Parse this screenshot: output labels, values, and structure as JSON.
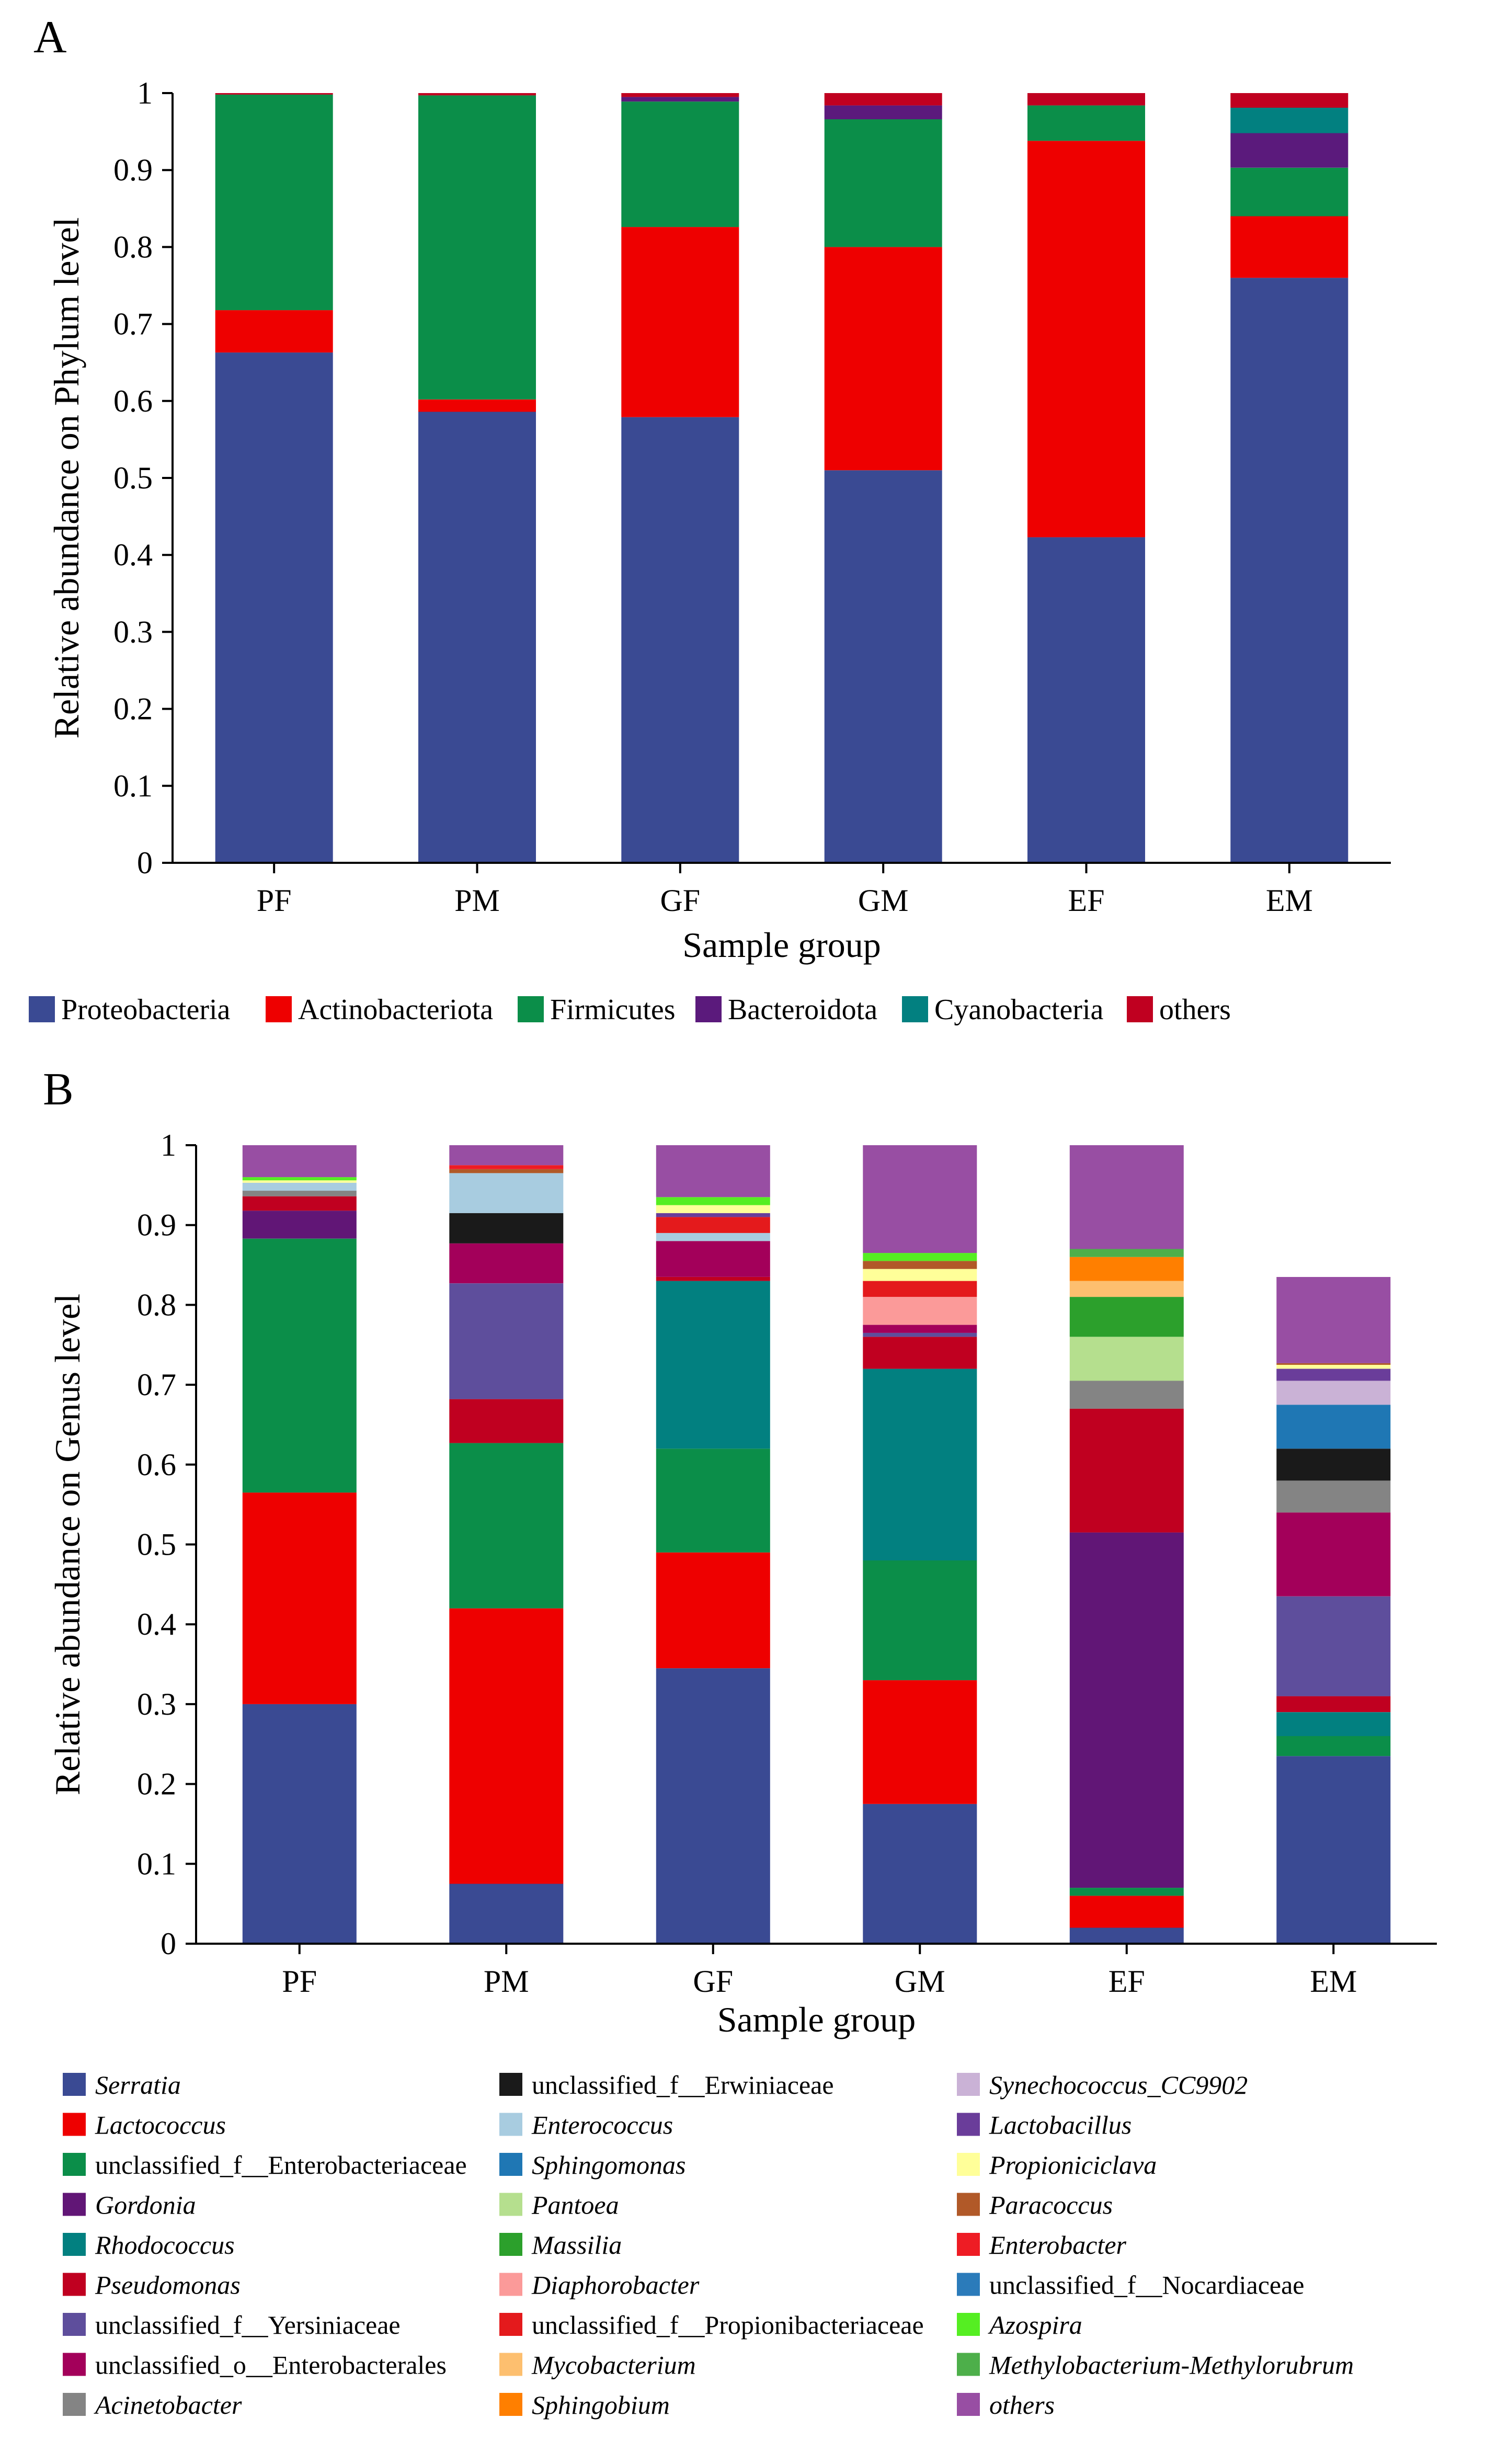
{
  "chart_data": [
    {
      "panel_label": "A",
      "type": "bar",
      "stacked": true,
      "xlabel": "Sample group",
      "ylabel": "Relative abundance on Phylum level",
      "ylim": [
        0,
        1
      ],
      "yticks": [
        "0",
        "0.1",
        "0.2",
        "0.3",
        "0.4",
        "0.5",
        "0.6",
        "0.7",
        "0.8",
        "0.9",
        "1"
      ],
      "categories": [
        "PF",
        "PM",
        "GF",
        "GM",
        "EF",
        "EM"
      ],
      "legend_position": "bottom",
      "series": [
        {
          "name": "Proteobacteria",
          "color": "#3a4a93",
          "italic": false,
          "values": [
            0.663,
            0.586,
            0.579,
            0.51,
            0.423,
            0.76
          ]
        },
        {
          "name": "Actinobacteriota",
          "color": "#ee0000",
          "italic": false,
          "values": [
            0.055,
            0.016,
            0.247,
            0.29,
            0.515,
            0.08
          ]
        },
        {
          "name": "Firmicutes",
          "color": "#0b8e49",
          "italic": false,
          "values": [
            0.28,
            0.395,
            0.163,
            0.166,
            0.046,
            0.063
          ]
        },
        {
          "name": "Bacteroidota",
          "color": "#5b1a7c",
          "italic": false,
          "values": [
            0.0,
            0.0,
            0.006,
            0.018,
            0.0,
            0.045
          ]
        },
        {
          "name": "Cyanobacteria",
          "color": "#028080",
          "italic": false,
          "values": [
            0.0,
            0.0,
            0.0,
            0.0,
            0.0,
            0.033
          ]
        },
        {
          "name": "others",
          "color": "#c00020",
          "italic": false,
          "values": [
            0.002,
            0.003,
            0.005,
            0.016,
            0.016,
            0.019
          ]
        }
      ]
    },
    {
      "panel_label": "B",
      "type": "bar",
      "stacked": true,
      "xlabel": "Sample group",
      "ylabel": "Relative abundance on Genus level",
      "ylim": [
        0,
        1
      ],
      "yticks": [
        "0",
        "0.1",
        "0.2",
        "0.3",
        "0.4",
        "0.5",
        "0.6",
        "0.7",
        "0.8",
        "0.9",
        "1"
      ],
      "categories": [
        "PF",
        "PM",
        "GF",
        "GM",
        "EF",
        "EM"
      ],
      "legend_position": "bottom",
      "series": [
        {
          "name": "Serratia",
          "color": "#3a4a93",
          "italic": true,
          "values": [
            0.3,
            0.075,
            0.345,
            0.175,
            0.02,
            0.235
          ]
        },
        {
          "name": "Lactococcus",
          "color": "#ee0000",
          "italic": true,
          "values": [
            0.265,
            0.345,
            0.145,
            0.155,
            0.04,
            0.0
          ]
        },
        {
          "name": "unclassified_f__Enterobacteriaceae",
          "color": "#0b8e49",
          "italic": false,
          "values": [
            0.318,
            0.207,
            0.13,
            0.15,
            0.01,
            0.025
          ]
        },
        {
          "name": "Gordonia",
          "color": "#611676",
          "italic": true,
          "values": [
            0.035,
            0.0,
            0.0,
            0.0,
            0.445,
            0.0
          ]
        },
        {
          "name": "Rhodococcus",
          "color": "#028080",
          "italic": true,
          "values": [
            0.0,
            0.0,
            0.21,
            0.24,
            0.0,
            0.03
          ]
        },
        {
          "name": "Pseudomonas",
          "color": "#c00020",
          "italic": true,
          "values": [
            0.018,
            0.055,
            0.005,
            0.04,
            0.155,
            0.02
          ]
        },
        {
          "name": "unclassified_f__Yersiniaceae",
          "color": "#5e4e9c",
          "italic": false,
          "values": [
            0.0,
            0.145,
            0.0,
            0.005,
            0.0,
            0.125
          ]
        },
        {
          "name": "unclassified_o__Enterobacterales",
          "color": "#a3005a",
          "italic": false,
          "values": [
            0.0,
            0.05,
            0.045,
            0.01,
            0.0,
            0.105
          ]
        },
        {
          "name": "Acinetobacter",
          "color": "#848484",
          "italic": true,
          "values": [
            0.007,
            0.0,
            0.0,
            0.0,
            0.035,
            0.04
          ]
        },
        {
          "name": "unclassified_f__Erwiniaceae",
          "color": "#1a1a1a",
          "italic": false,
          "values": [
            0.0,
            0.038,
            0.0,
            0.0,
            0.0,
            0.04
          ]
        },
        {
          "name": "Enterococcus",
          "color": "#a8cce0",
          "italic": true,
          "values": [
            0.01,
            0.05,
            0.01,
            0.0,
            0.0,
            0.0
          ]
        },
        {
          "name": "Sphingomonas",
          "color": "#1f77b4",
          "italic": true,
          "values": [
            0.0,
            0.0,
            0.0,
            0.0,
            0.0,
            0.055
          ]
        },
        {
          "name": "Pantoea",
          "color": "#b5df8e",
          "italic": true,
          "values": [
            0.0,
            0.0,
            0.0,
            0.0,
            0.055,
            0.0
          ]
        },
        {
          "name": "Massilia",
          "color": "#2ca02c",
          "italic": true,
          "values": [
            0.0,
            0.0,
            0.0,
            0.0,
            0.05,
            0.0
          ]
        },
        {
          "name": "Diaphorobacter",
          "color": "#fb9a99",
          "italic": true,
          "values": [
            0.0,
            0.0,
            0.0,
            0.035,
            0.0,
            0.0
          ]
        },
        {
          "name": "unclassified_f__Propionibacteriaceae",
          "color": "#e41a1c",
          "italic": false,
          "values": [
            0.0,
            0.0,
            0.02,
            0.02,
            0.0,
            0.0
          ]
        },
        {
          "name": "Mycobacterium",
          "color": "#fdbf6f",
          "italic": true,
          "values": [
            0.0,
            0.0,
            0.0,
            0.0,
            0.02,
            0.0
          ]
        },
        {
          "name": "Sphingobium",
          "color": "#ff7f00",
          "italic": true,
          "values": [
            0.0,
            0.0,
            0.0,
            0.0,
            0.03,
            0.0
          ]
        },
        {
          "name": "Synechococcus_CC9902",
          "color": "#cab2d6",
          "italic": true,
          "values": [
            0.0,
            0.0,
            0.0,
            0.0,
            0.0,
            0.03
          ]
        },
        {
          "name": "Lactobacillus",
          "color": "#6a3d9a",
          "italic": true,
          "values": [
            0.0,
            0.0,
            0.005,
            0.0,
            0.0,
            0.015
          ]
        },
        {
          "name": "Propioniciclava",
          "color": "#ffff99",
          "italic": true,
          "values": [
            0.003,
            0.0,
            0.01,
            0.015,
            0.0,
            0.005
          ]
        },
        {
          "name": "Paracoccus",
          "color": "#b15928",
          "italic": true,
          "values": [
            0.0,
            0.005,
            0.0,
            0.01,
            0.0,
            0.002
          ]
        },
        {
          "name": "Enterobacter",
          "color": "#ee1c24",
          "italic": true,
          "values": [
            0.0,
            0.005,
            0.0,
            0.0,
            0.0,
            0.0
          ]
        },
        {
          "name": "unclassified_f__Nocardiaceae",
          "color": "#2b7bba",
          "italic": false,
          "values": [
            0.0,
            0.0,
            0.0,
            0.0,
            0.0,
            0.0
          ]
        },
        {
          "name": "Azospira",
          "color": "#55ee22",
          "italic": true,
          "values": [
            0.004,
            0.0,
            0.01,
            0.01,
            0.0,
            0.0
          ]
        },
        {
          "name": "Methylobacterium-Methylorubrum",
          "color": "#4daf4a",
          "italic": true,
          "values": [
            0.0,
            0.0,
            0.0,
            0.0,
            0.01,
            0.0
          ]
        },
        {
          "name": "others",
          "color": "#984ea3",
          "italic": true,
          "values": [
            0.04,
            0.025,
            0.065,
            0.135,
            0.13,
            0.108
          ]
        }
      ]
    }
  ]
}
